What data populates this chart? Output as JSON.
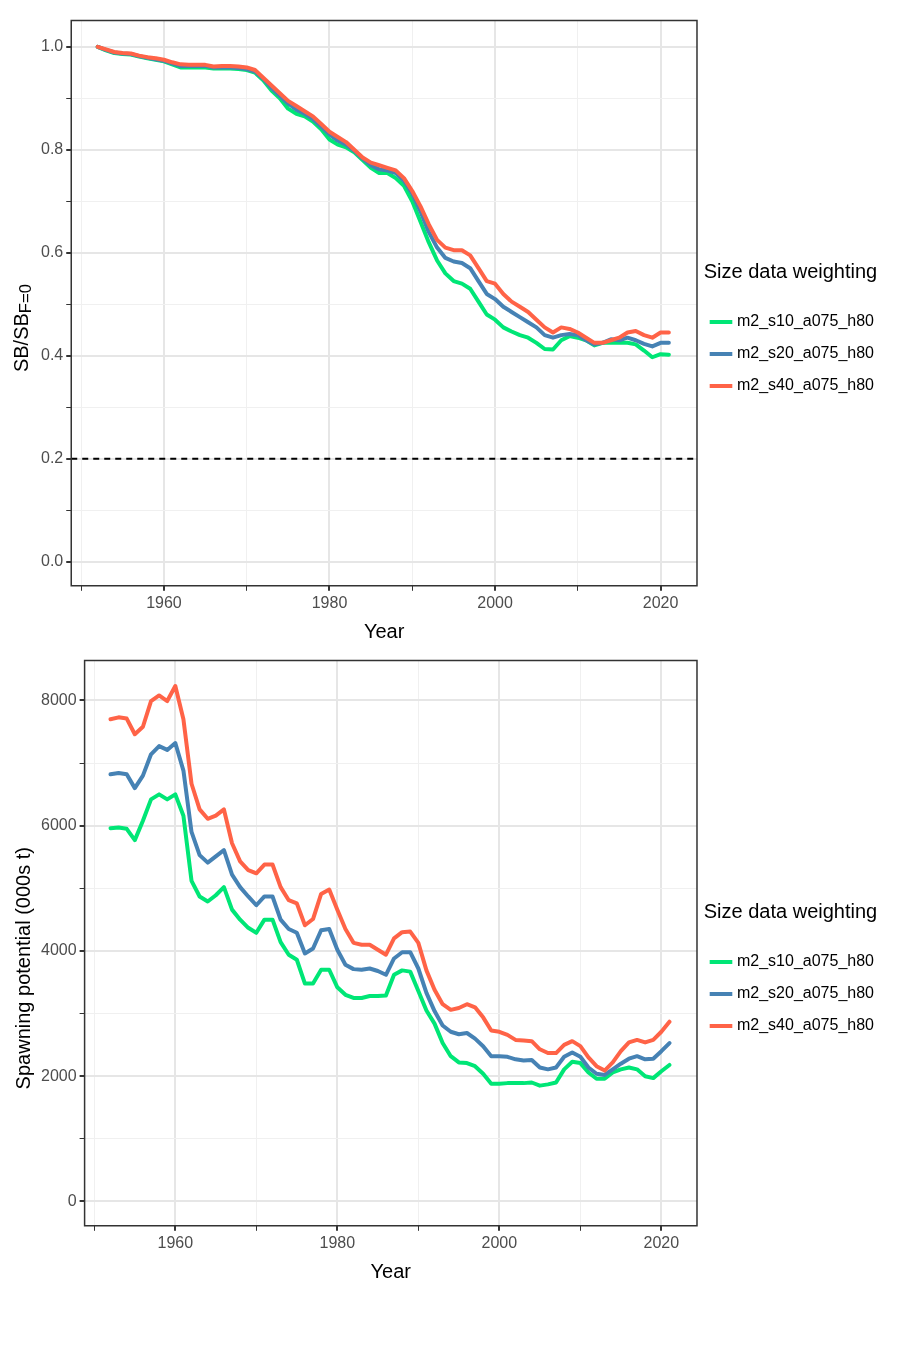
{
  "chart_data": [
    {
      "type": "line",
      "ylabel": "SB/SB$_{F=0}$",
      "xlabel": "Year",
      "legend_title": "Size data weighting",
      "legend": "right",
      "grid": true,
      "marker": "none",
      "line_style": "solid",
      "xlim": [
        1948.8,
        2024.4
      ],
      "xticks": [
        {
          "value": 1950,
          "label": null
        },
        1960,
        {
          "value": 1970,
          "label": null
        },
        1980,
        {
          "value": 1990,
          "label": null
        },
        2000,
        {
          "value": 2010,
          "label": null
        },
        2020
      ],
      "ylim": [
        -0.047,
        1.051
      ],
      "yticks": [
        {
          "value": 0,
          "label": "0.0"
        },
        {
          "value": 0.1,
          "label": null
        },
        0.2,
        {
          "value": 0.3,
          "label": null
        },
        0.4,
        {
          "value": 0.5,
          "label": null
        },
        0.6,
        {
          "value": 0.7,
          "label": null
        },
        0.8,
        {
          "value": 0.9,
          "label": null
        },
        {
          "value": 1,
          "label": "1.0"
        }
      ],
      "x": [
        1952,
        1953,
        1954,
        1955,
        1956,
        1957,
        1958,
        1959,
        1960,
        1961,
        1962,
        1963,
        1964,
        1965,
        1966,
        1967,
        1968,
        1969,
        1970,
        1971,
        1972,
        1973,
        1974,
        1975,
        1976,
        1977,
        1978,
        1979,
        1980,
        1981,
        1982,
        1983,
        1984,
        1985,
        1986,
        1987,
        1988,
        1989,
        1990,
        1991,
        1992,
        1993,
        1994,
        1995,
        1996,
        1997,
        1998,
        1999,
        2000,
        2001,
        2002,
        2003,
        2004,
        2005,
        2006,
        2007,
        2008,
        2009,
        2010,
        2011,
        2012,
        2013,
        2014,
        2015,
        2016,
        2017,
        2018,
        2019,
        2020,
        2021
      ],
      "ref_lines": [
        {
          "axis": "y",
          "value": 0.2,
          "color": "#000000",
          "line_style": "dashed"
        }
      ],
      "series": [
        {
          "name": "m2_s10_a075_h80",
          "color": "#00e676",
          "values": [
            1.0,
            0.993,
            0.988,
            0.986,
            0.985,
            0.981,
            0.978,
            0.975,
            0.972,
            0.966,
            0.96,
            0.96,
            0.96,
            0.96,
            0.958,
            0.958,
            0.958,
            0.957,
            0.955,
            0.95,
            0.935,
            0.915,
            0.9,
            0.88,
            0.87,
            0.865,
            0.855,
            0.84,
            0.82,
            0.81,
            0.805,
            0.795,
            0.78,
            0.765,
            0.755,
            0.755,
            0.745,
            0.73,
            0.7,
            0.66,
            0.62,
            0.585,
            0.56,
            0.545,
            0.54,
            0.53,
            0.505,
            0.48,
            0.47,
            0.455,
            0.447,
            0.44,
            0.435,
            0.425,
            0.413,
            0.412,
            0.43,
            0.438,
            0.435,
            0.43,
            0.42,
            0.425,
            0.425,
            0.425,
            0.425,
            0.422,
            0.41,
            0.397,
            0.403,
            0.402
          ]
        },
        {
          "name": "m2_s20_a075_h80",
          "color": "#4682b4",
          "values": [
            1.0,
            0.994,
            0.989,
            0.987,
            0.986,
            0.982,
            0.979,
            0.976,
            0.973,
            0.968,
            0.963,
            0.963,
            0.963,
            0.963,
            0.96,
            0.96,
            0.96,
            0.959,
            0.957,
            0.952,
            0.938,
            0.92,
            0.905,
            0.89,
            0.878,
            0.87,
            0.86,
            0.845,
            0.83,
            0.818,
            0.81,
            0.798,
            0.783,
            0.77,
            0.762,
            0.76,
            0.755,
            0.74,
            0.715,
            0.68,
            0.64,
            0.61,
            0.59,
            0.583,
            0.58,
            0.57,
            0.545,
            0.52,
            0.51,
            0.495,
            0.485,
            0.475,
            0.465,
            0.455,
            0.44,
            0.435,
            0.44,
            0.442,
            0.44,
            0.43,
            0.422,
            0.425,
            0.432,
            0.43,
            0.435,
            0.43,
            0.423,
            0.418,
            0.425,
            0.425
          ]
        },
        {
          "name": "m2_s40_a075_h80",
          "color": "#ff6347",
          "values": [
            1.0,
            0.995,
            0.99,
            0.988,
            0.987,
            0.983,
            0.98,
            0.978,
            0.975,
            0.97,
            0.966,
            0.965,
            0.965,
            0.965,
            0.962,
            0.963,
            0.963,
            0.962,
            0.96,
            0.955,
            0.94,
            0.925,
            0.91,
            0.895,
            0.885,
            0.875,
            0.865,
            0.85,
            0.835,
            0.825,
            0.815,
            0.8,
            0.785,
            0.775,
            0.77,
            0.765,
            0.76,
            0.745,
            0.72,
            0.69,
            0.655,
            0.625,
            0.61,
            0.605,
            0.605,
            0.595,
            0.57,
            0.545,
            0.54,
            0.52,
            0.505,
            0.495,
            0.485,
            0.47,
            0.455,
            0.445,
            0.455,
            0.452,
            0.445,
            0.435,
            0.425,
            0.425,
            0.43,
            0.435,
            0.445,
            0.448,
            0.44,
            0.435,
            0.445,
            0.445
          ]
        }
      ]
    },
    {
      "type": "line",
      "ylabel": "Spawning potential (000s t)",
      "xlabel": "Year",
      "legend_title": "Size data weighting",
      "legend": "right",
      "grid": true,
      "marker": "none",
      "line_style": "solid",
      "xlim": [
        1948.8,
        2024.4
      ],
      "xticks": [
        {
          "value": 1950,
          "label": null
        },
        1960,
        {
          "value": 1970,
          "label": null
        },
        1980,
        {
          "value": 1990,
          "label": null
        },
        2000,
        {
          "value": 2010,
          "label": null
        },
        2020
      ],
      "ylim": [
        -388,
        8636
      ],
      "yticks": [
        0,
        {
          "value": 1000,
          "label": null
        },
        2000,
        {
          "value": 3000,
          "label": null
        },
        4000,
        {
          "value": 5000,
          "label": null
        },
        6000,
        {
          "value": 7000,
          "label": null
        },
        8000
      ],
      "x": [
        1952,
        1953,
        1954,
        1955,
        1956,
        1957,
        1958,
        1959,
        1960,
        1961,
        1962,
        1963,
        1964,
        1965,
        1966,
        1967,
        1968,
        1969,
        1970,
        1971,
        1972,
        1973,
        1974,
        1975,
        1976,
        1977,
        1978,
        1979,
        1980,
        1981,
        1982,
        1983,
        1984,
        1985,
        1986,
        1987,
        1988,
        1989,
        1990,
        1991,
        1992,
        1993,
        1994,
        1995,
        1996,
        1997,
        1998,
        1999,
        2000,
        2001,
        2002,
        2003,
        2004,
        2005,
        2006,
        2007,
        2008,
        2009,
        2010,
        2011,
        2012,
        2013,
        2014,
        2015,
        2016,
        2017,
        2018,
        2019,
        2020,
        2021
      ],
      "series": [
        {
          "name": "m2_s10_a075_h80",
          "color": "#00e676",
          "values": [
            5960,
            5970,
            5950,
            5770,
            6080,
            6420,
            6500,
            6420,
            6500,
            6160,
            5120,
            4870,
            4790,
            4890,
            5020,
            4660,
            4500,
            4370,
            4290,
            4500,
            4500,
            4140,
            3940,
            3860,
            3480,
            3480,
            3700,
            3700,
            3420,
            3300,
            3250,
            3250,
            3280,
            3280,
            3290,
            3620,
            3690,
            3670,
            3360,
            3050,
            2840,
            2530,
            2320,
            2220,
            2210,
            2160,
            2040,
            1880,
            1880,
            1890,
            1890,
            1890,
            1900,
            1850,
            1870,
            1900,
            2110,
            2230,
            2210,
            2060,
            1960,
            1960,
            2060,
            2110,
            2140,
            2110,
            2000,
            1970,
            2080,
            2180
          ]
        },
        {
          "name": "m2_s20_a075_h80",
          "color": "#4682b4",
          "values": [
            6820,
            6840,
            6820,
            6600,
            6800,
            7140,
            7270,
            7210,
            7320,
            6880,
            5900,
            5530,
            5410,
            5510,
            5610,
            5220,
            5020,
            4870,
            4730,
            4870,
            4870,
            4500,
            4350,
            4290,
            3960,
            4040,
            4330,
            4350,
            4020,
            3780,
            3710,
            3700,
            3720,
            3680,
            3620,
            3880,
            3980,
            3980,
            3720,
            3330,
            3040,
            2810,
            2710,
            2670,
            2690,
            2600,
            2480,
            2320,
            2320,
            2310,
            2270,
            2250,
            2260,
            2140,
            2110,
            2140,
            2310,
            2380,
            2310,
            2140,
            2040,
            2020,
            2110,
            2200,
            2280,
            2320,
            2270,
            2280,
            2400,
            2530
          ]
        },
        {
          "name": "m2_s40_a075_h80",
          "color": "#ff6347",
          "values": [
            7700,
            7730,
            7710,
            7460,
            7580,
            7990,
            8080,
            7990,
            8230,
            7700,
            6670,
            6260,
            6110,
            6160,
            6260,
            5720,
            5430,
            5290,
            5240,
            5380,
            5380,
            5020,
            4810,
            4760,
            4410,
            4510,
            4910,
            4980,
            4660,
            4350,
            4130,
            4100,
            4100,
            4020,
            3940,
            4200,
            4300,
            4310,
            4130,
            3690,
            3380,
            3150,
            3060,
            3090,
            3150,
            3100,
            2940,
            2730,
            2710,
            2660,
            2580,
            2570,
            2560,
            2430,
            2370,
            2370,
            2500,
            2560,
            2480,
            2300,
            2160,
            2090,
            2220,
            2400,
            2540,
            2580,
            2540,
            2580,
            2710,
            2870
          ]
        }
      ]
    }
  ]
}
